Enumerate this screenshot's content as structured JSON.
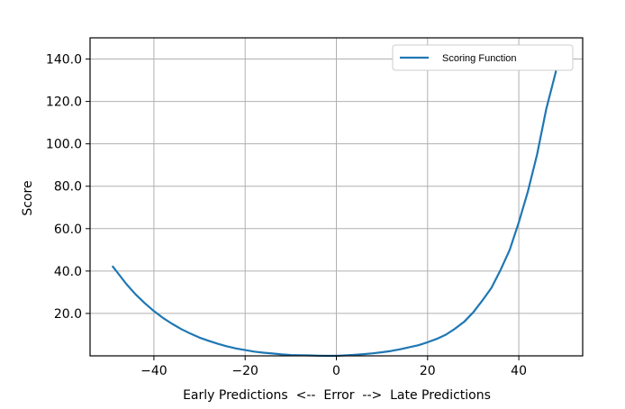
{
  "chart_data": {
    "type": "line",
    "title": "",
    "xlabel": "Early Predictions  <--  Error  -->  Late Predictions",
    "ylabel": "Score",
    "xlim": [
      -54,
      54
    ],
    "ylim": [
      0,
      150
    ],
    "x_ticks": [
      -40,
      -20,
      0,
      20,
      40
    ],
    "x_tick_labels": [
      "−40",
      "−20",
      "0",
      "20",
      "40"
    ],
    "y_ticks": [
      20,
      40,
      60,
      80,
      100,
      120,
      140
    ],
    "y_tick_labels": [
      "20.0",
      "40.0",
      "60.0",
      "80.0",
      "100.0",
      "120.0",
      "140.0"
    ],
    "grid": true,
    "legend_position": "top-right",
    "series": [
      {
        "name": "Scoring Function",
        "color": "#1f77b4",
        "x": [
          -49,
          -48,
          -46,
          -44,
          -42,
          -40,
          -38,
          -36,
          -34,
          -32,
          -30,
          -28,
          -26,
          -24,
          -22,
          -20,
          -18,
          -16,
          -14,
          -12,
          -10,
          -8,
          -6,
          -4,
          -2,
          0,
          2,
          4,
          6,
          8,
          10,
          12,
          14,
          16,
          18,
          20,
          22,
          24,
          26,
          28,
          30,
          32,
          34,
          36,
          38,
          40,
          42,
          44,
          46,
          48,
          49
        ],
        "y": [
          42.1,
          39.3,
          33.8,
          29.0,
          24.8,
          21.1,
          17.9,
          15.1,
          12.6,
          10.5,
          8.6,
          7.1,
          5.7,
          4.5,
          3.5,
          2.7,
          2.0,
          1.5,
          1.1,
          0.7,
          0.4,
          0.3,
          0.2,
          0.1,
          0.0,
          0.0,
          0.2,
          0.5,
          0.8,
          1.2,
          1.7,
          2.3,
          3.1,
          4.1,
          5.0,
          6.4,
          8.0,
          10.0,
          12.8,
          16.0,
          20.5,
          26.1,
          32.1,
          40.5,
          50.0,
          63.0,
          77.6,
          95.0,
          116.3,
          133.0,
          143.0
        ]
      }
    ]
  }
}
